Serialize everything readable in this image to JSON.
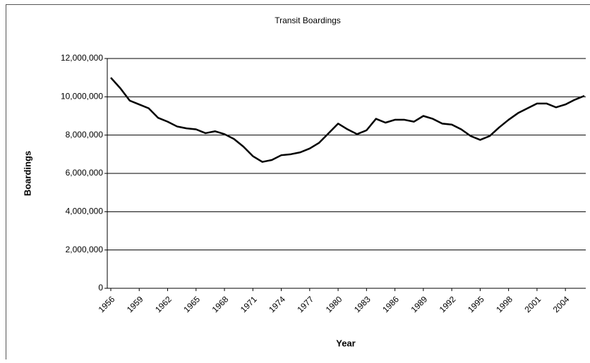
{
  "chart_data": {
    "type": "line",
    "title": "Transit Boardings",
    "x_label": "Year",
    "y_label": "Boardings",
    "x": [
      1956,
      1957,
      1958,
      1959,
      1960,
      1961,
      1962,
      1963,
      1964,
      1965,
      1966,
      1967,
      1968,
      1969,
      1970,
      1971,
      1972,
      1973,
      1974,
      1975,
      1976,
      1977,
      1978,
      1979,
      1980,
      1981,
      1982,
      1983,
      1984,
      1985,
      1986,
      1987,
      1988,
      1989,
      1990,
      1991,
      1992,
      1993,
      1994,
      1995,
      1996,
      1997,
      1998,
      1999,
      2000,
      2001,
      2002,
      2003,
      2004,
      2005,
      2006
    ],
    "series": [
      {
        "name": "Boardings",
        "color": "#000000",
        "values": [
          11000000,
          10450000,
          9800000,
          9600000,
          9400000,
          8900000,
          8700000,
          8450000,
          8350000,
          8300000,
          8100000,
          8200000,
          8050000,
          7800000,
          7400000,
          6900000,
          6600000,
          6700000,
          6950000,
          7000000,
          7100000,
          7300000,
          7600000,
          8100000,
          8600000,
          8300000,
          8050000,
          8250000,
          8850000,
          8650000,
          8800000,
          8800000,
          8700000,
          9000000,
          8850000,
          8600000,
          8550000,
          8300000,
          7950000,
          7750000,
          7950000,
          8400000,
          8800000,
          9150000,
          9400000,
          9650000,
          9650000,
          9450000,
          9600000,
          9850000,
          10050000
        ]
      }
    ],
    "xlim": [
      1956,
      2006
    ],
    "xticks": [
      1956,
      1959,
      1962,
      1965,
      1968,
      1971,
      1974,
      1977,
      1980,
      1983,
      1986,
      1989,
      1992,
      1995,
      1998,
      2001,
      2004
    ],
    "ylim": [
      0,
      12000000
    ],
    "yticks": [
      0,
      {
        "value": 2000000,
        "label": "2,000,000"
      },
      {
        "value": 4000000,
        "label": "4,000,000"
      },
      {
        "value": 6000000,
        "label": "6,000,000"
      },
      {
        "value": 8000000,
        "label": "8,000,000"
      },
      {
        "value": 10000000,
        "label": "10,000,000"
      },
      {
        "value": 12000000,
        "label": "12,000,000"
      }
    ],
    "grid": true
  }
}
